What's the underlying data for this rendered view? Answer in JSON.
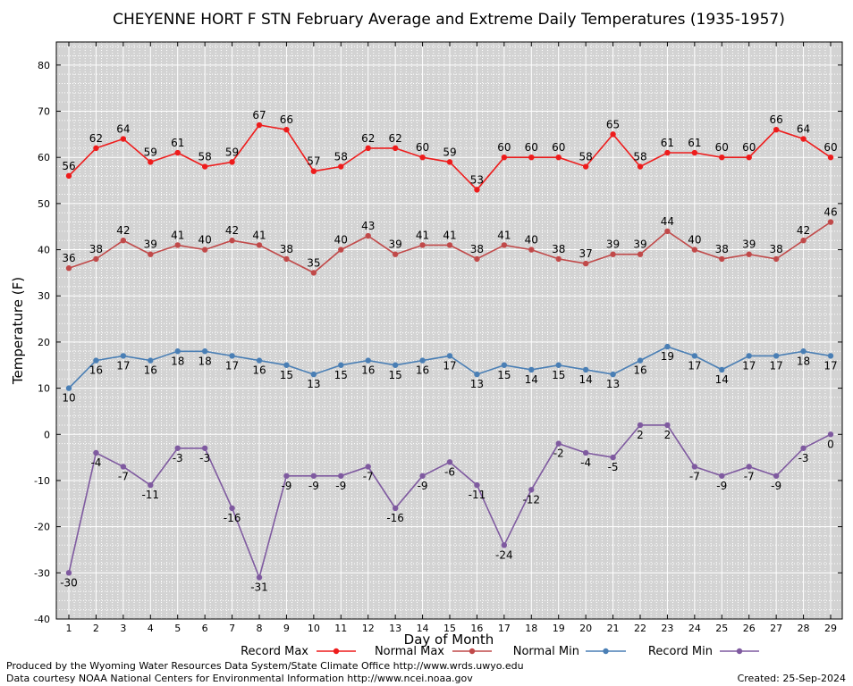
{
  "chart_data": {
    "type": "line",
    "title": "CHEYENNE HORT F STN February Average and Extreme Daily Temperatures (1935-1957)",
    "xlabel": "Day of Month",
    "ylabel": "Temperature (F)",
    "categories": [
      "1",
      "2",
      "3",
      "4",
      "5",
      "6",
      "7",
      "8",
      "9",
      "10",
      "11",
      "12",
      "13",
      "14",
      "15",
      "16",
      "17",
      "18",
      "19",
      "20",
      "21",
      "22",
      "23",
      "24",
      "25",
      "26",
      "27",
      "28",
      "29"
    ],
    "ylim": [
      -40,
      85
    ],
    "yticks": [
      -40,
      -30,
      -20,
      -10,
      0,
      10,
      20,
      30,
      40,
      50,
      60,
      70,
      80
    ],
    "grid": true,
    "legend_position": "bottom",
    "series": [
      {
        "name": "Record Max",
        "color": "#ee1c1c",
        "values": [
          56,
          62,
          64,
          59,
          61,
          58,
          59,
          67,
          66,
          57,
          58,
          62,
          62,
          60,
          59,
          53,
          60,
          60,
          60,
          58,
          65,
          58,
          61,
          61,
          60,
          60,
          66,
          64,
          60
        ]
      },
      {
        "name": "Normal Max",
        "color": "#c14a4a",
        "values": [
          36,
          38,
          42,
          39,
          41,
          40,
          42,
          41,
          38,
          35,
          40,
          43,
          39,
          41,
          41,
          38,
          41,
          40,
          38,
          37,
          39,
          39,
          44,
          40,
          38,
          39,
          38,
          42,
          46
        ]
      },
      {
        "name": "Normal Min",
        "color": "#4a7fb5",
        "values": [
          10,
          16,
          17,
          16,
          18,
          18,
          17,
          16,
          15,
          13,
          15,
          16,
          15,
          16,
          17,
          13,
          15,
          14,
          15,
          14,
          13,
          16,
          19,
          17,
          14,
          17,
          17,
          18,
          17
        ]
      },
      {
        "name": "Record Min",
        "color": "#7f5aa0",
        "values": [
          -30,
          -4,
          -7,
          -11,
          -3,
          -3,
          -16,
          -31,
          -9,
          -9,
          -9,
          -7,
          -16,
          -9,
          -6,
          -11,
          -24,
          -12,
          -2,
          -4,
          -5,
          2,
          2,
          -7,
          -9,
          -7,
          -9,
          -3,
          0
        ]
      }
    ]
  },
  "footer": {
    "produced_by": "Produced by the Wyoming Water Resources Data System/State Climate Office http://www.wrds.uwyo.edu",
    "courtesy": "Data courtesy NOAA National Centers for Environmental Information http://www.ncei.noaa.gov",
    "created": "Created:  25-Sep-2024"
  }
}
